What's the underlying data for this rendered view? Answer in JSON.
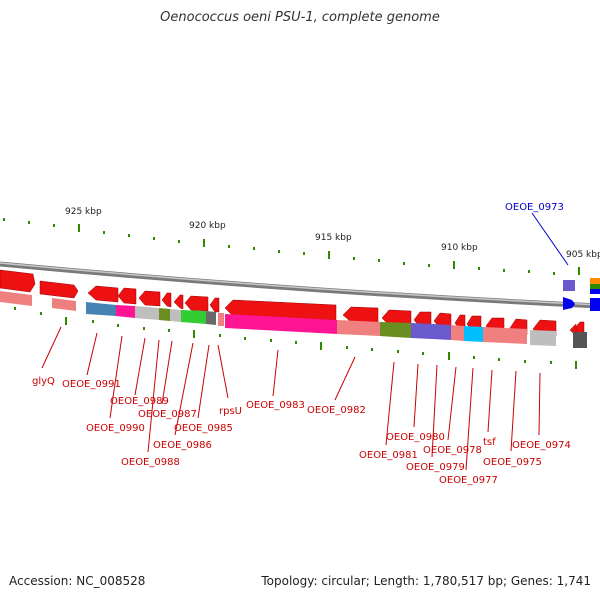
{
  "title": "Oenococcus oeni PSU-1, complete genome",
  "footer": {
    "accession": "Accession: NC_008528",
    "summary": "Topology: circular; Length: 1,780,517 bp; Genes: 1,741"
  },
  "ticks": [
    "925 kbp",
    "920 kbp",
    "915 kbp",
    "910 kbp",
    "905 kbp"
  ],
  "gene_labels": [
    {
      "name": "glyQ",
      "color": "#cc0000"
    },
    {
      "name": "OEOE_0991",
      "color": "#cc0000"
    },
    {
      "name": "OEOE_0990",
      "color": "#cc0000"
    },
    {
      "name": "OEOE_0989",
      "color": "#cc0000"
    },
    {
      "name": "OEOE_0988",
      "color": "#cc0000"
    },
    {
      "name": "OEOE_0987",
      "color": "#cc0000"
    },
    {
      "name": "OEOE_0986",
      "color": "#cc0000"
    },
    {
      "name": "OEOE_0985",
      "color": "#cc0000"
    },
    {
      "name": "rpsU",
      "color": "#cc0000"
    },
    {
      "name": "OEOE_0983",
      "color": "#cc0000"
    },
    {
      "name": "OEOE_0982",
      "color": "#cc0000"
    },
    {
      "name": "OEOE_0981",
      "color": "#cc0000"
    },
    {
      "name": "OEOE_0980",
      "color": "#cc0000"
    },
    {
      "name": "OEOE_0979",
      "color": "#cc0000"
    },
    {
      "name": "OEOE_0978",
      "color": "#cc0000"
    },
    {
      "name": "OEOE_0977",
      "color": "#cc0000"
    },
    {
      "name": "tsf",
      "color": "#cc0000"
    },
    {
      "name": "OEOE_0975",
      "color": "#cc0000"
    },
    {
      "name": "OEOE_0974",
      "color": "#cc0000"
    },
    {
      "name": "OEOE_0973",
      "color": "#0000cc"
    }
  ]
}
